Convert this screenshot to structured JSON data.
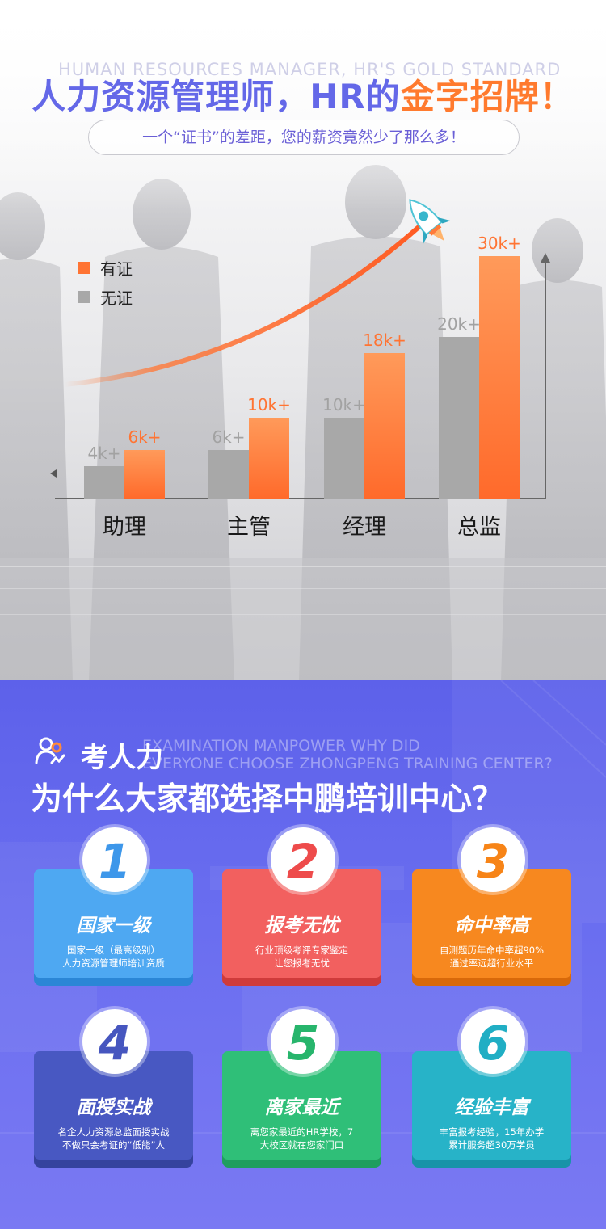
{
  "header": {
    "bg_text": "HUMAN RESOURCES MANAGER, HR'S GOLD STANDARD",
    "title_part1": "人力资源管理师，HR的",
    "title_part2": "金字招牌！",
    "subtitle": "一个“证书”的差距，您的薪资竟然少了那么多！"
  },
  "colors": {
    "with_cert": "#ff7433",
    "without_cert": "#a8a8a8",
    "accent_purple": "#6468e8"
  },
  "chart_data": {
    "type": "bar",
    "categories": [
      "助理",
      "主管",
      "经理",
      "总监"
    ],
    "series": [
      {
        "name": "无证",
        "values": [
          4,
          6,
          10,
          20
        ],
        "labels": [
          "4k+",
          "6k+",
          "10k+",
          "20k+"
        ]
      },
      {
        "name": "有证",
        "values": [
          6,
          10,
          18,
          30
        ],
        "labels": [
          "6k+",
          "10k+",
          "18k+",
          "30k+"
        ]
      }
    ],
    "ylim": [
      0,
      32
    ],
    "legend_position": "top-left",
    "grid": false
  },
  "legend": {
    "items": [
      {
        "label": "有证"
      },
      {
        "label": "无证"
      }
    ]
  },
  "section2": {
    "bg_text_line1": "EXAMINATION MANPOWER WHY DID",
    "bg_text_line2": "EVERYONE CHOOSE ZHONGPENG TRAINING CENTER?",
    "title_line1": "考人力",
    "title_line2": "为什么大家都选择中鹏培训中心？",
    "cards": [
      {
        "num": "1",
        "title": "国家一级",
        "desc1": "国家一级（最高级别）",
        "desc2": "人力资源管理师培训资质",
        "color": "#4ea8f2",
        "shadow": "#2b86d6",
        "num_color": "#3d97ea"
      },
      {
        "num": "2",
        "title": "报考无忧",
        "desc1": "行业顶级考评专家鉴定",
        "desc2": "让您报考无忧",
        "color": "#f2605f",
        "shadow": "#cf3b3b",
        "num_color": "#ee4b4b"
      },
      {
        "num": "3",
        "title": "命中率高",
        "desc1": "自测题历年命中率超90%",
        "desc2": "通过率远超行业水平",
        "color": "#f7881f",
        "shadow": "#d8690a",
        "num_color": "#f78417"
      },
      {
        "num": "4",
        "title": "面授实战",
        "desc1": "名企人力资源总监面授实战",
        "desc2": "不做只会考证的“低能”人",
        "color": "#4858c2",
        "shadow": "#35439e",
        "num_color": "#4656bf"
      },
      {
        "num": "5",
        "title": "离家最近",
        "desc1": "离您家最近的HR学校，7",
        "desc2": "大校区就在您家门口",
        "color": "#2fbf78",
        "shadow": "#1f9e5e",
        "num_color": "#27b56c"
      },
      {
        "num": "6",
        "title": "经验丰富",
        "desc1": "丰富报考经验，15年办学",
        "desc2": "累计服务超30万学员",
        "color": "#27b3c8",
        "shadow": "#1893a8",
        "num_color": "#20aec4"
      }
    ]
  }
}
